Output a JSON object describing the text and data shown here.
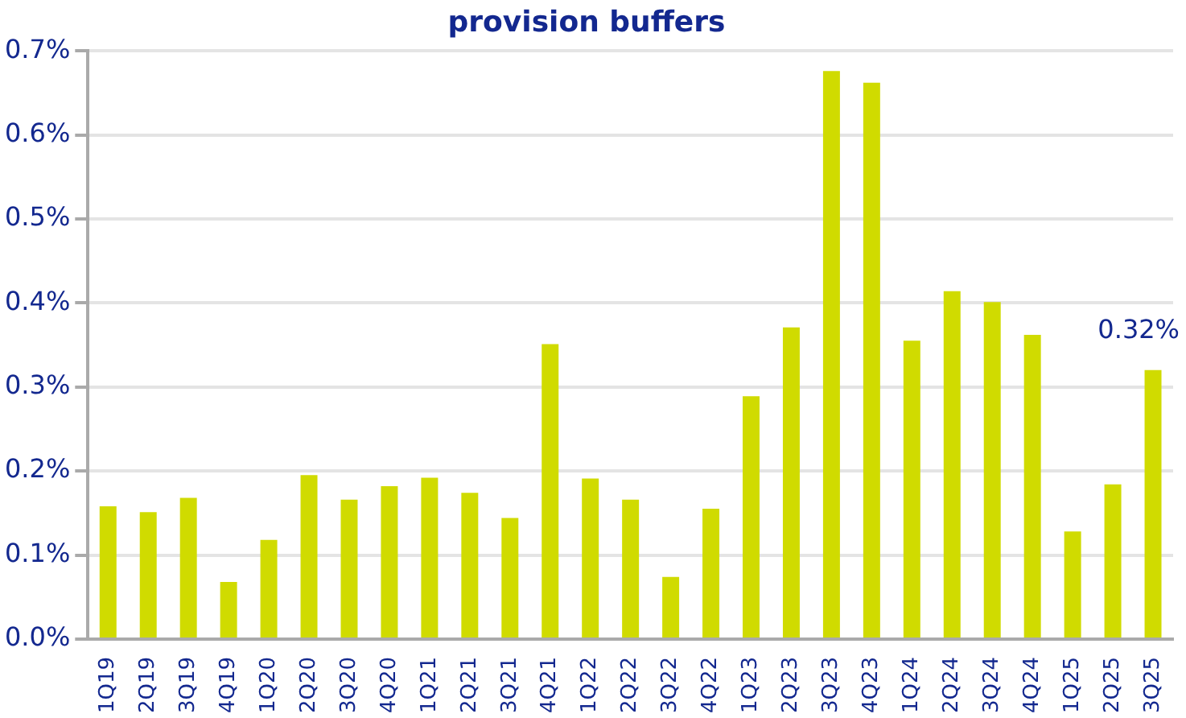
{
  "chart_data": {
    "type": "bar",
    "title": "provision buffers",
    "categories": [
      "1Q19",
      "2Q19",
      "3Q19",
      "4Q19",
      "1Q20",
      "2Q20",
      "3Q20",
      "4Q20",
      "1Q21",
      "2Q21",
      "3Q21",
      "4Q21",
      "1Q22",
      "2Q22",
      "3Q22",
      "4Q22",
      "1Q23",
      "2Q23",
      "3Q23",
      "4Q23",
      "1Q24",
      "2Q24",
      "3Q24",
      "4Q24",
      "1Q25",
      "2Q25",
      "3Q25"
    ],
    "values": [
      0.158,
      0.151,
      0.168,
      0.068,
      0.118,
      0.195,
      0.166,
      0.182,
      0.192,
      0.174,
      0.144,
      0.351,
      0.191,
      0.166,
      0.074,
      0.155,
      0.289,
      0.371,
      0.676,
      0.662,
      0.355,
      0.414,
      0.401,
      0.362,
      0.128,
      0.184,
      0.32
    ],
    "value_labels": [
      null,
      null,
      null,
      null,
      null,
      null,
      null,
      null,
      null,
      null,
      null,
      null,
      null,
      null,
      null,
      null,
      null,
      null,
      null,
      null,
      null,
      null,
      null,
      null,
      null,
      null,
      "0.32%"
    ],
    "color": "#d0db00",
    "ylim": [
      0,
      0.7
    ],
    "yticks": [
      {
        "value": 0,
        "label": "0.0%"
      },
      {
        "value": 0.1,
        "label": "0.1%"
      },
      {
        "value": 0.2,
        "label": "0.2%"
      },
      {
        "value": 0.3,
        "label": "0.3%"
      },
      {
        "value": 0.4,
        "label": "0.4%"
      },
      {
        "value": 0.5,
        "label": "0.5%"
      },
      {
        "value": 0.6,
        "label": "0.6%"
      },
      {
        "value": 0.7,
        "label": "0.7%"
      }
    ],
    "grid": "y",
    "legend": false
  }
}
